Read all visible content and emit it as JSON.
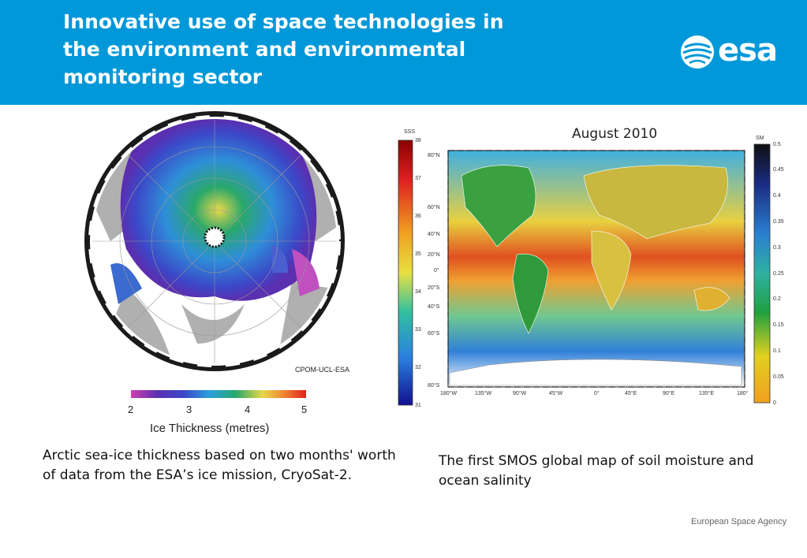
{
  "header": {
    "title_lines": [
      "Innovative use of space technologies in",
      "the environment and environmental",
      "monitoring sector"
    ],
    "logo_text": "esa",
    "background": "#0098d8"
  },
  "arctic_figure": {
    "credit": "CPOM-UCL-ESA",
    "colorbar": {
      "ticks": [
        "2",
        "3",
        "4",
        "5"
      ],
      "label": "Ice Thickness (metres)"
    },
    "caption": "Arctic sea-ice thickness based on two months' worth of data from the ESA’s ice mission, CryoSat-2."
  },
  "smos_figure": {
    "title": "August 2010",
    "sss_label": "SSS",
    "sss_ticks": [
      "38",
      "37",
      "36",
      "35",
      "34",
      "33",
      "32",
      "31"
    ],
    "sm_label": "SM",
    "sm_ticks": [
      "0.5",
      "0.45",
      "0.4",
      "0.35",
      "0.3",
      "0.25",
      "0.2",
      "0.15",
      "0.1",
      "0.05",
      "0"
    ],
    "lat_ticks": [
      "80°N",
      "60°N",
      "40°N",
      "20°N",
      "0°",
      "20°S",
      "40°S",
      "60°S",
      "80°S"
    ],
    "lon_ticks": [
      "180°W",
      "135°W",
      "90°W",
      "45°W",
      "0°",
      "45°E",
      "90°E",
      "135°E",
      "180°"
    ],
    "caption": "The first SMOS global map of soil moisture and ocean salinity"
  },
  "footer": {
    "agency": "European Space Agency"
  }
}
